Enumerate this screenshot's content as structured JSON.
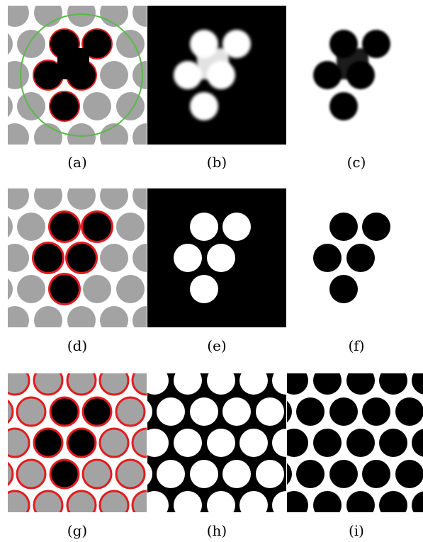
{
  "captions": {
    "a": "(a)",
    "b": "(b)",
    "c": "(c)",
    "d": "(d)",
    "e": "(e)",
    "f": "(f)",
    "g": "(g)",
    "h": "(h)",
    "i": "(i)"
  },
  "colors": {
    "gray_disk": "#a3a3a3",
    "black": "#000000",
    "white": "#ffffff",
    "red_outline": "#e41a1c",
    "green_circle": "#58b947",
    "blur_inner": "#e2e2e2",
    "blur_inner_dark": "#1a1a1a"
  }
}
